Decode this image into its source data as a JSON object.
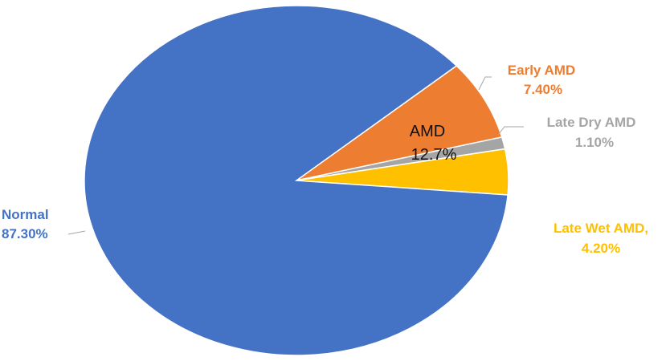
{
  "chart_data": {
    "type": "pie",
    "slices": [
      {
        "name": "Normal",
        "value": 87.3,
        "label_name": "Normal",
        "label_value": "87.30%",
        "color": "#4472C4",
        "label_color": "#4472C4"
      },
      {
        "name": "Early AMD",
        "value": 7.4,
        "label_name": "Early AMD",
        "label_value": "7.40%",
        "color": "#ED7D31",
        "label_color": "#ED7D31"
      },
      {
        "name": "Late Dry AMD",
        "value": 1.1,
        "label_name": "Late Dry AMD",
        "label_value": "1.10%",
        "color": "#A5A5A5",
        "label_color": "#A5A5A5"
      },
      {
        "name": "Late Wet AMD",
        "value": 4.2,
        "label_name": "Late Wet AMD,",
        "label_value": "4.20%",
        "color": "#FFC000",
        "label_color": "#FFC000"
      }
    ],
    "group_annotation": {
      "label": "AMD",
      "value": "12.7%"
    }
  }
}
